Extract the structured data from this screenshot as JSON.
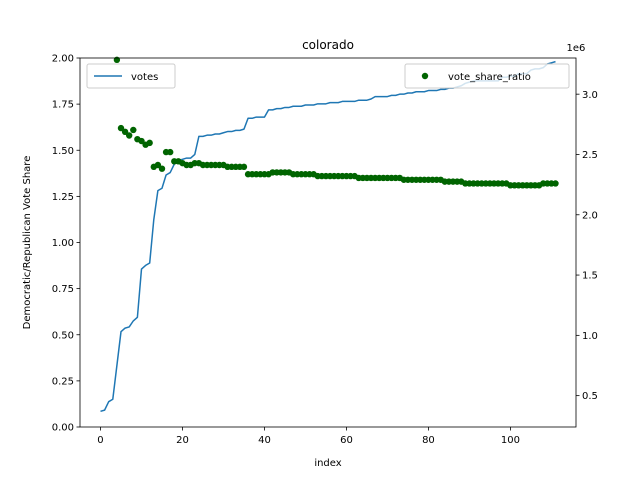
{
  "chart_data": {
    "type": "line+scatter",
    "title": "colorado",
    "xlabel": "index",
    "ylabel": "Democratic/Republican Vote Share",
    "xlim": [
      -5,
      116
    ],
    "ylim": [
      0,
      2.0
    ],
    "y2lim": [
      0.24,
      3.3
    ],
    "y2_offset_text": "1e6",
    "x_ticks": [
      0,
      20,
      40,
      60,
      80,
      100
    ],
    "y_ticks": [
      0.0,
      0.25,
      0.5,
      0.75,
      1.0,
      1.25,
      1.5,
      1.75,
      2.0
    ],
    "y2_ticks": [
      0.5,
      1.0,
      1.5,
      2.0,
      2.5,
      3.0
    ],
    "legend_left": {
      "placement": "upper left",
      "label": "votes"
    },
    "legend_right": {
      "placement": "upper right",
      "label": "vote_share_ratio"
    },
    "colors": {
      "votes": "#1f77b4",
      "vote_share_ratio": "#006400"
    },
    "series": [
      {
        "name": "votes",
        "kind": "line",
        "axis": "right",
        "points": [
          [
            0,
            0.37
          ],
          [
            1,
            0.38
          ],
          [
            2,
            0.45
          ],
          [
            3,
            0.47
          ],
          [
            4,
            0.75
          ],
          [
            5,
            1.03
          ],
          [
            6,
            1.06
          ],
          [
            7,
            1.07
          ],
          [
            8,
            1.12
          ],
          [
            9,
            1.15
          ],
          [
            10,
            1.55
          ],
          [
            11,
            1.58
          ],
          [
            12,
            1.6
          ],
          [
            13,
            1.96
          ],
          [
            14,
            2.2
          ],
          [
            15,
            2.22
          ],
          [
            16,
            2.33
          ],
          [
            17,
            2.35
          ],
          [
            18,
            2.42
          ],
          [
            19,
            2.45
          ],
          [
            20,
            2.46
          ],
          [
            21,
            2.47
          ],
          [
            22,
            2.47
          ],
          [
            23,
            2.5
          ],
          [
            24,
            2.65
          ],
          [
            25,
            2.65
          ],
          [
            26,
            2.66
          ],
          [
            27,
            2.66
          ],
          [
            28,
            2.67
          ],
          [
            29,
            2.67
          ],
          [
            30,
            2.68
          ],
          [
            31,
            2.69
          ],
          [
            32,
            2.69
          ],
          [
            33,
            2.7
          ],
          [
            34,
            2.7
          ],
          [
            35,
            2.71
          ],
          [
            36,
            2.8
          ],
          [
            37,
            2.8
          ],
          [
            38,
            2.81
          ],
          [
            39,
            2.81
          ],
          [
            40,
            2.81
          ],
          [
            41,
            2.87
          ],
          [
            42,
            2.87
          ],
          [
            43,
            2.88
          ],
          [
            44,
            2.88
          ],
          [
            45,
            2.89
          ],
          [
            46,
            2.89
          ],
          [
            47,
            2.9
          ],
          [
            48,
            2.9
          ],
          [
            49,
            2.9
          ],
          [
            50,
            2.91
          ],
          [
            51,
            2.91
          ],
          [
            52,
            2.91
          ],
          [
            53,
            2.92
          ],
          [
            54,
            2.92
          ],
          [
            55,
            2.92
          ],
          [
            56,
            2.93
          ],
          [
            57,
            2.93
          ],
          [
            58,
            2.93
          ],
          [
            59,
            2.94
          ],
          [
            60,
            2.94
          ],
          [
            61,
            2.94
          ],
          [
            62,
            2.94
          ],
          [
            63,
            2.95
          ],
          [
            64,
            2.95
          ],
          [
            65,
            2.95
          ],
          [
            66,
            2.96
          ],
          [
            67,
            2.98
          ],
          [
            68,
            2.98
          ],
          [
            69,
            2.98
          ],
          [
            70,
            2.98
          ],
          [
            71,
            2.99
          ],
          [
            72,
            2.99
          ],
          [
            73,
            3.0
          ],
          [
            74,
            3.0
          ],
          [
            75,
            3.01
          ],
          [
            76,
            3.01
          ],
          [
            77,
            3.02
          ],
          [
            78,
            3.02
          ],
          [
            79,
            3.02
          ],
          [
            80,
            3.03
          ],
          [
            81,
            3.03
          ],
          [
            82,
            3.03
          ],
          [
            83,
            3.04
          ],
          [
            84,
            3.04
          ],
          [
            85,
            3.05
          ],
          [
            86,
            3.05
          ],
          [
            87,
            3.06
          ],
          [
            88,
            3.07
          ],
          [
            89,
            3.09
          ],
          [
            90,
            3.1
          ],
          [
            91,
            3.11
          ],
          [
            92,
            3.11
          ],
          [
            93,
            3.11
          ],
          [
            94,
            3.11
          ],
          [
            95,
            3.11
          ],
          [
            96,
            3.11
          ],
          [
            97,
            3.11
          ],
          [
            98,
            3.14
          ],
          [
            99,
            3.14
          ],
          [
            100,
            3.15
          ],
          [
            101,
            3.15
          ],
          [
            102,
            3.17
          ],
          [
            103,
            3.17
          ],
          [
            104,
            3.17
          ],
          [
            105,
            3.2
          ],
          [
            106,
            3.21
          ],
          [
            107,
            3.21
          ],
          [
            108,
            3.22
          ],
          [
            109,
            3.25
          ],
          [
            110,
            3.26
          ],
          [
            111,
            3.27
          ]
        ]
      },
      {
        "name": "vote_share_ratio",
        "kind": "scatter",
        "axis": "left",
        "points": [
          [
            4,
            1.99
          ],
          [
            5,
            1.62
          ],
          [
            6,
            1.6
          ],
          [
            7,
            1.58
          ],
          [
            8,
            1.61
          ],
          [
            9,
            1.56
          ],
          [
            10,
            1.55
          ],
          [
            11,
            1.53
          ],
          [
            12,
            1.54
          ],
          [
            13,
            1.41
          ],
          [
            14,
            1.42
          ],
          [
            15,
            1.4
          ],
          [
            16,
            1.49
          ],
          [
            17,
            1.49
          ],
          [
            18,
            1.44
          ],
          [
            19,
            1.44
          ],
          [
            20,
            1.43
          ],
          [
            21,
            1.42
          ],
          [
            22,
            1.42
          ],
          [
            23,
            1.43
          ],
          [
            24,
            1.43
          ],
          [
            25,
            1.42
          ],
          [
            26,
            1.42
          ],
          [
            27,
            1.42
          ],
          [
            28,
            1.42
          ],
          [
            29,
            1.42
          ],
          [
            30,
            1.42
          ],
          [
            31,
            1.41
          ],
          [
            32,
            1.41
          ],
          [
            33,
            1.41
          ],
          [
            34,
            1.41
          ],
          [
            35,
            1.41
          ],
          [
            36,
            1.37
          ],
          [
            37,
            1.37
          ],
          [
            38,
            1.37
          ],
          [
            39,
            1.37
          ],
          [
            40,
            1.37
          ],
          [
            41,
            1.37
          ],
          [
            42,
            1.38
          ],
          [
            43,
            1.38
          ],
          [
            44,
            1.38
          ],
          [
            45,
            1.38
          ],
          [
            46,
            1.38
          ],
          [
            47,
            1.37
          ],
          [
            48,
            1.37
          ],
          [
            49,
            1.37
          ],
          [
            50,
            1.37
          ],
          [
            51,
            1.37
          ],
          [
            52,
            1.37
          ],
          [
            53,
            1.36
          ],
          [
            54,
            1.36
          ],
          [
            55,
            1.36
          ],
          [
            56,
            1.36
          ],
          [
            57,
            1.36
          ],
          [
            58,
            1.36
          ],
          [
            59,
            1.36
          ],
          [
            60,
            1.36
          ],
          [
            61,
            1.36
          ],
          [
            62,
            1.36
          ],
          [
            63,
            1.35
          ],
          [
            64,
            1.35
          ],
          [
            65,
            1.35
          ],
          [
            66,
            1.35
          ],
          [
            67,
            1.35
          ],
          [
            68,
            1.35
          ],
          [
            69,
            1.35
          ],
          [
            70,
            1.35
          ],
          [
            71,
            1.35
          ],
          [
            72,
            1.35
          ],
          [
            73,
            1.35
          ],
          [
            74,
            1.34
          ],
          [
            75,
            1.34
          ],
          [
            76,
            1.34
          ],
          [
            77,
            1.34
          ],
          [
            78,
            1.34
          ],
          [
            79,
            1.34
          ],
          [
            80,
            1.34
          ],
          [
            81,
            1.34
          ],
          [
            82,
            1.34
          ],
          [
            83,
            1.34
          ],
          [
            84,
            1.33
          ],
          [
            85,
            1.33
          ],
          [
            86,
            1.33
          ],
          [
            87,
            1.33
          ],
          [
            88,
            1.33
          ],
          [
            89,
            1.32
          ],
          [
            90,
            1.32
          ],
          [
            91,
            1.32
          ],
          [
            92,
            1.32
          ],
          [
            93,
            1.32
          ],
          [
            94,
            1.32
          ],
          [
            95,
            1.32
          ],
          [
            96,
            1.32
          ],
          [
            97,
            1.32
          ],
          [
            98,
            1.32
          ],
          [
            99,
            1.32
          ],
          [
            100,
            1.31
          ],
          [
            101,
            1.31
          ],
          [
            102,
            1.31
          ],
          [
            103,
            1.31
          ],
          [
            104,
            1.31
          ],
          [
            105,
            1.31
          ],
          [
            106,
            1.31
          ],
          [
            107,
            1.31
          ],
          [
            108,
            1.32
          ],
          [
            109,
            1.32
          ],
          [
            110,
            1.32
          ],
          [
            111,
            1.32
          ]
        ]
      }
    ]
  }
}
